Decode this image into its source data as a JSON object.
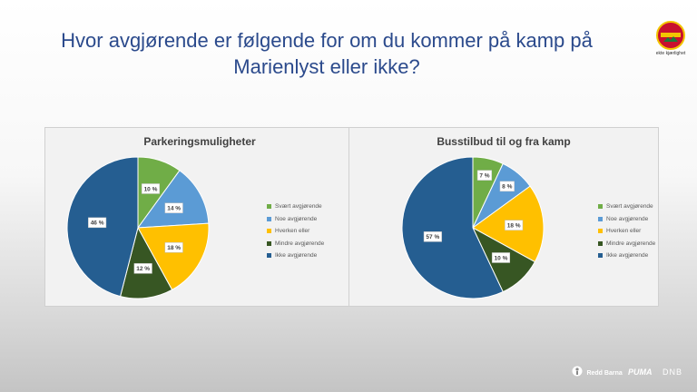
{
  "slide": {
    "title_line1": "Hvor avgjørende er følgende for om du kommer på kamp på",
    "title_line2": "Marienlyst eller ikke?",
    "logo_caption": "ekte kjærlighet",
    "footer": {
      "redd_barna": "Redd Barna",
      "puma": "PUMA",
      "dnb": "DNB"
    }
  },
  "colors": [
    "#70ad47",
    "#5b9bd5",
    "#ffc000",
    "#375623",
    "#255e91"
  ],
  "chart_data": [
    {
      "type": "pie",
      "title": "Parkeringsmuligheter",
      "categories": [
        "Svært avgjørende",
        "Noe avgjørende",
        "Hverken eller",
        "Mindre avgjørende",
        "Ikke avgjørende"
      ],
      "values": [
        10,
        14,
        18,
        12,
        46
      ],
      "labels": [
        "10 %",
        "14 %",
        "18 %",
        "12 %",
        "46 %"
      ],
      "legend": "right"
    },
    {
      "type": "pie",
      "title": "Busstilbud til og fra kamp",
      "categories": [
        "Svært avgjørende",
        "Noe avgjørende",
        "Hverken eller",
        "Mindre avgjørende",
        "Ikke avgjørende"
      ],
      "values": [
        7,
        8,
        18,
        10,
        57
      ],
      "labels": [
        "7 %",
        "8 %",
        "18 %",
        "10 %",
        "57 %"
      ],
      "legend": "right"
    }
  ]
}
